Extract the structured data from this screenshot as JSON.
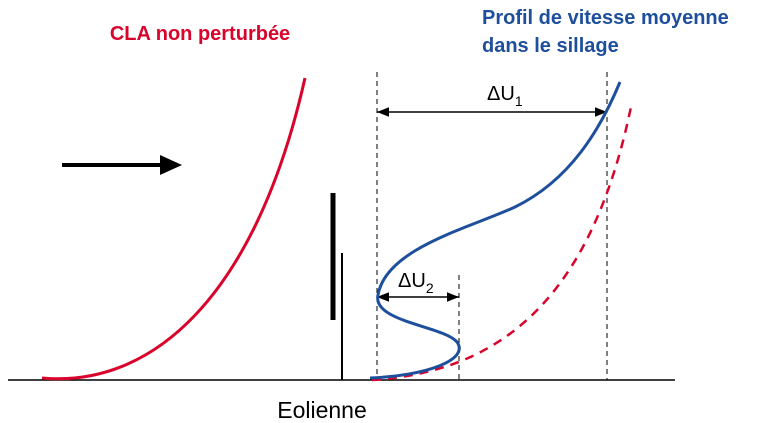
{
  "labels": {
    "undisturbed": "CLA non perturbée",
    "wake_title": [
      "Profil de vitesse moyenne",
      "dans le sillage"
    ],
    "delta1": {
      "symbol": "ΔU",
      "subscript": "1"
    },
    "delta2": {
      "symbol": "ΔU",
      "subscript": "2"
    },
    "turbine": "Eolienne"
  }
}
